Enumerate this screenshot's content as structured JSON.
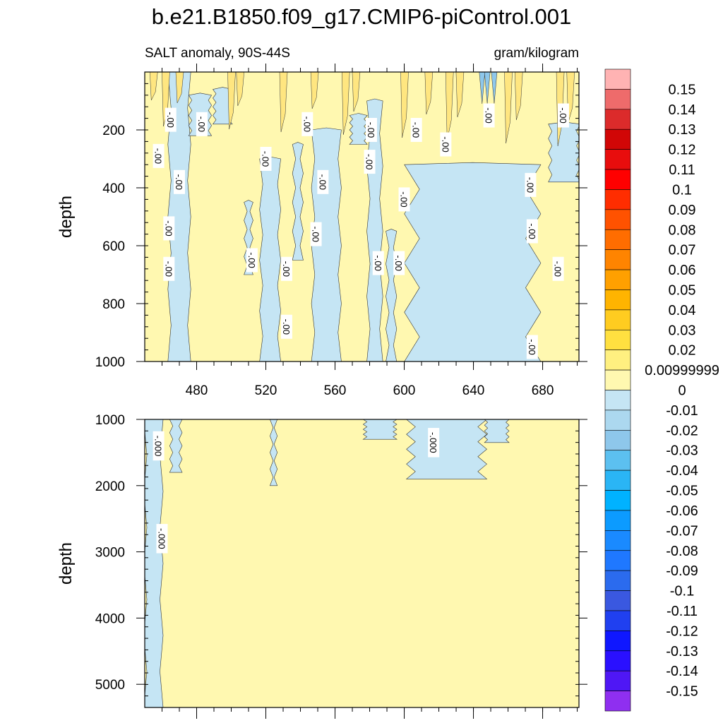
{
  "chart_data": {
    "type": "heatmap",
    "title": "b.e21.B1850.f09_g17.CMIP6-piControl.001",
    "subtitle_left": "SALT anomaly, 90S-44S",
    "subtitle_right": "gram/kilogram",
    "x_range": [
      450,
      701
    ],
    "x_ticks": [
      480,
      520,
      560,
      600,
      640,
      680
    ],
    "x_tick_labels": [
      "480",
      "520",
      "560",
      "600",
      "640",
      "680"
    ],
    "panels": [
      {
        "name": "upper",
        "ylabel": "depth",
        "ylim": [
          0,
          1000
        ],
        "y_ticks": [
          200,
          400,
          600,
          800,
          1000
        ],
        "y_tick_labels": [
          "200",
          "400",
          "600",
          "800",
          "1000"
        ],
        "background_level": "0",
        "negative_bands": [
          {
            "x": [
              450,
              451.5
            ],
            "d": [
              0,
              0
            ]
          },
          {
            "x": [
              464,
              476
            ],
            "d": [
              1000,
              0
            ]
          },
          {
            "x": [
              476,
              488
            ],
            "d": [
              220,
              80
            ]
          },
          {
            "x": [
              490,
              500
            ],
            "d": [
              180,
              60
            ]
          },
          {
            "x": [
              508,
              512
            ],
            "d": [
              700,
              450
            ]
          },
          {
            "x": [
              517,
              528
            ],
            "d": [
              1000,
              300
            ]
          },
          {
            "x": [
              536,
              541
            ],
            "d": [
              650,
              250
            ]
          },
          {
            "x": [
              547,
              563
            ],
            "d": [
              1000,
              200
            ]
          },
          {
            "x": [
              569,
              578
            ],
            "d": [
              250,
              150
            ]
          },
          {
            "x": [
              579,
              587
            ],
            "d": [
              1000,
              100
            ]
          },
          {
            "x": [
              590,
              595
            ],
            "d": [
              1000,
              550
            ]
          },
          {
            "x": [
              603,
              676
            ],
            "d": [
              1000,
              320
            ]
          },
          {
            "x": [
              684,
              701
            ],
            "d": [
              380,
              180
            ]
          }
        ],
        "surface_positive_columns": [
          455,
          462,
          470,
          500,
          505,
          530,
          548,
          566,
          572,
          600,
          614,
          626,
          632,
          660,
          666,
          690,
          696
        ],
        "contour_labels": [
          {
            "x": 465,
            "d": 165,
            "text": "-.00"
          },
          {
            "x": 483,
            "d": 180,
            "text": "-.00"
          },
          {
            "x": 458,
            "d": 290,
            "text": "-.00"
          },
          {
            "x": 470,
            "d": 380,
            "text": "-.00"
          },
          {
            "x": 464,
            "d": 540,
            "text": "-.00"
          },
          {
            "x": 464,
            "d": 680,
            "text": "-.00"
          },
          {
            "x": 512,
            "d": 650,
            "text": "-.00"
          },
          {
            "x": 520,
            "d": 300,
            "text": "-.00"
          },
          {
            "x": 532,
            "d": 680,
            "text": "-.00"
          },
          {
            "x": 532,
            "d": 880,
            "text": "-.00"
          },
          {
            "x": 544,
            "d": 180,
            "text": "-.00"
          },
          {
            "x": 553,
            "d": 380,
            "text": "-.00"
          },
          {
            "x": 549,
            "d": 560,
            "text": "-.00"
          },
          {
            "x": 581,
            "d": 200,
            "text": "-.00"
          },
          {
            "x": 580,
            "d": 310,
            "text": "-.00"
          },
          {
            "x": 585,
            "d": 660,
            "text": "-.00"
          },
          {
            "x": 597,
            "d": 660,
            "text": "-.00"
          },
          {
            "x": 600,
            "d": 440,
            "text": "-.00"
          },
          {
            "x": 607,
            "d": 200,
            "text": "-.00"
          },
          {
            "x": 624,
            "d": 250,
            "text": "-.00"
          },
          {
            "x": 649,
            "d": 150,
            "text": "-.00"
          },
          {
            "x": 673,
            "d": 390,
            "text": "-.00"
          },
          {
            "x": 674,
            "d": 550,
            "text": "-.00"
          },
          {
            "x": 674,
            "d": 950,
            "text": "-.00"
          },
          {
            "x": 692,
            "d": 150,
            "text": "-.00"
          },
          {
            "x": 689,
            "d": 680,
            "text": "-.00"
          }
        ]
      },
      {
        "name": "lower",
        "ylabel": "depth",
        "ylim": [
          1000,
          5350
        ],
        "y_ticks": [
          1000,
          2000,
          3000,
          4000,
          5000
        ],
        "y_tick_labels": [
          "1000",
          "2000",
          "3000",
          "4000",
          "5000"
        ],
        "background_level": "0",
        "negative_regions": [
          {
            "x": [
              450,
              460
            ],
            "d": [
              5350,
              1000
            ]
          },
          {
            "x": [
              465,
              471
            ],
            "d": [
              1800,
              1000
            ]
          },
          {
            "x": [
              523,
              526
            ],
            "d": [
              2000,
              1000
            ]
          },
          {
            "x": [
              577,
              595
            ],
            "d": [
              1300,
              1000
            ]
          },
          {
            "x": [
              603,
              646
            ],
            "d": [
              1900,
              1000
            ]
          },
          {
            "x": [
              647,
              660
            ],
            "d": [
              1350,
              1000
            ]
          }
        ],
        "contour_labels": [
          {
            "x": 458,
            "d": 1400,
            "text": "-.000"
          },
          {
            "x": 460,
            "d": 2800,
            "text": "-.000"
          },
          {
            "x": 617,
            "d": 1350,
            "text": "-.000"
          }
        ]
      }
    ],
    "colorbar": {
      "levels": [
        "0.15",
        "0.14",
        "0.13",
        "0.12",
        "0.11",
        "0.1",
        "0.09",
        "0.08",
        "0.07",
        "0.06",
        "0.05",
        "0.04",
        "0.03",
        "0.02",
        "0.00999999",
        "0",
        "-0.01",
        "-0.02",
        "-0.03",
        "-0.04",
        "-0.05",
        "-0.06",
        "-0.07",
        "-0.08",
        "-0.09",
        "-0.1",
        "-0.11",
        "-0.12",
        "-0.13",
        "-0.14",
        "-0.15"
      ],
      "colors": [
        "#ffb3b3",
        "#ee6b6b",
        "#dc2b2b",
        "#d10606",
        "#e80d0d",
        "#ff0000",
        "#ff2d00",
        "#ff5200",
        "#ff6d00",
        "#ff8400",
        "#ffa000",
        "#ffb400",
        "#ffcc20",
        "#ffe040",
        "#fff080",
        "#fff8b0",
        "#c5e5f4",
        "#acd8ef",
        "#8ec7eb",
        "#5cc0f0",
        "#2ab5f5",
        "#00b2ff",
        "#0c9bff",
        "#1a8aff",
        "#1f78ff",
        "#2b6bee",
        "#3a58e0",
        "#2040f0",
        "#0f17ff",
        "#2a10ff",
        "#4f17f5",
        "#8f2ff0"
      ]
    },
    "palette": {
      "positive_fill": "#fff8b0",
      "negative_fill": "#c5e5f4",
      "surface_positive": "#ffe680",
      "surface_negative": "#8ec7eb",
      "contour_line": "#333333"
    }
  }
}
